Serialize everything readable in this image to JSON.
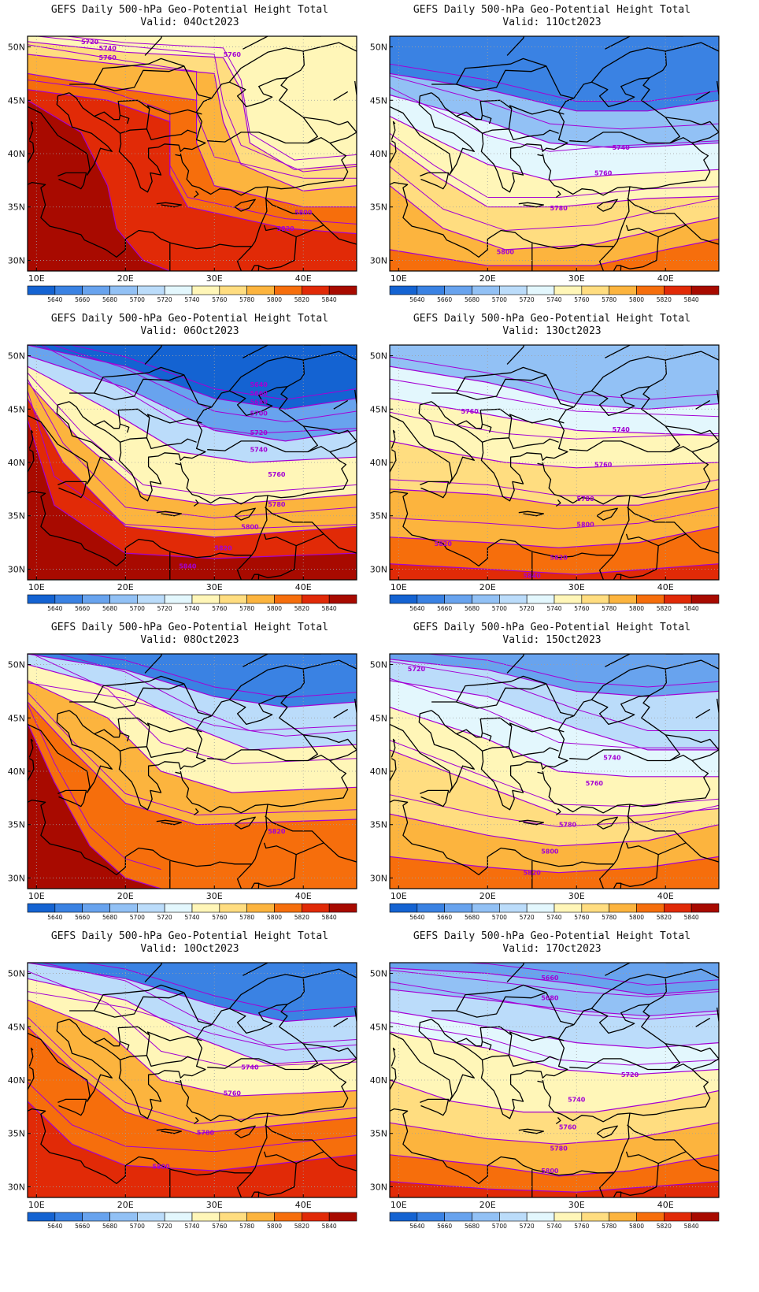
{
  "panels": [
    {
      "title": "GEFS Daily 500-hPa Geo-Potential Height Total",
      "valid": "Valid: 04Oct2023",
      "contour_labels": [
        {
          "text": "5720",
          "lon": 16,
          "lat": 50.5
        },
        {
          "text": "5740",
          "lon": 18,
          "lat": 49.9
        },
        {
          "text": "5760",
          "lon": 18,
          "lat": 49
        },
        {
          "text": "5760",
          "lon": 32,
          "lat": 49.3
        },
        {
          "text": "5800",
          "lon": 40,
          "lat": 34.5
        },
        {
          "text": "5820",
          "lon": 38,
          "lat": 33
        }
      ]
    },
    {
      "title": "GEFS Daily 500-hPa Geo-Potential Height Total",
      "valid": "Valid: 11Oct2023",
      "contour_labels": [
        {
          "text": "5740",
          "lon": 35,
          "lat": 40.6
        },
        {
          "text": "5760",
          "lon": 33,
          "lat": 38.2
        },
        {
          "text": "5780",
          "lon": 28,
          "lat": 34.9
        },
        {
          "text": "5800",
          "lon": 22,
          "lat": 30.8
        }
      ]
    },
    {
      "title": "GEFS Daily 500-hPa Geo-Potential Height Total",
      "valid": "Valid: 06Oct2023",
      "contour_labels": [
        {
          "text": "5640",
          "lon": 35,
          "lat": 47.3
        },
        {
          "text": "5660",
          "lon": 35,
          "lat": 46.5
        },
        {
          "text": "5680",
          "lon": 35,
          "lat": 45.7
        },
        {
          "text": "5700",
          "lon": 35,
          "lat": 44.6
        },
        {
          "text": "5720",
          "lon": 35,
          "lat": 42.8
        },
        {
          "text": "5740",
          "lon": 35,
          "lat": 41.2
        },
        {
          "text": "5760",
          "lon": 37,
          "lat": 38.9
        },
        {
          "text": "5780",
          "lon": 37,
          "lat": 36.1
        },
        {
          "text": "5800",
          "lon": 34,
          "lat": 34
        },
        {
          "text": "5820",
          "lon": 31,
          "lat": 32
        },
        {
          "text": "5840",
          "lon": 27,
          "lat": 30.3
        }
      ]
    },
    {
      "title": "GEFS Daily 500-hPa Geo-Potential Height Total",
      "valid": "Valid: 13Oct2023",
      "contour_labels": [
        {
          "text": "5760",
          "lon": 18,
          "lat": 44.8
        },
        {
          "text": "5740",
          "lon": 35,
          "lat": 43.1
        },
        {
          "text": "5760",
          "lon": 33,
          "lat": 39.8
        },
        {
          "text": "5780",
          "lon": 31,
          "lat": 36.6
        },
        {
          "text": "5800",
          "lon": 31,
          "lat": 34.2
        },
        {
          "text": "5820",
          "lon": 15,
          "lat": 32.4
        },
        {
          "text": "5820",
          "lon": 28,
          "lat": 31.1
        },
        {
          "text": "5840",
          "lon": 25,
          "lat": 29.4
        }
      ]
    },
    {
      "title": "GEFS Daily 500-hPa Geo-Potential Height Total",
      "valid": "Valid: 08Oct2023",
      "contour_labels": [
        {
          "text": "5820",
          "lon": 37,
          "lat": 34.4
        }
      ]
    },
    {
      "title": "GEFS Daily 500-hPa Geo-Potential Height Total",
      "valid": "Valid: 15Oct2023",
      "contour_labels": [
        {
          "text": "5720",
          "lon": 12,
          "lat": 49.6
        },
        {
          "text": "5740",
          "lon": 34,
          "lat": 41.3
        },
        {
          "text": "5760",
          "lon": 32,
          "lat": 38.9
        },
        {
          "text": "5780",
          "lon": 29,
          "lat": 35
        },
        {
          "text": "5800",
          "lon": 27,
          "lat": 32.5
        },
        {
          "text": "5820",
          "lon": 25,
          "lat": 30.5
        }
      ]
    },
    {
      "title": "GEFS Daily 500-hPa Geo-Potential Height Total",
      "valid": "Valid: 10Oct2023",
      "contour_labels": [
        {
          "text": "5740",
          "lon": 34,
          "lat": 41.2
        },
        {
          "text": "5760",
          "lon": 32,
          "lat": 38.8
        },
        {
          "text": "5780",
          "lon": 29,
          "lat": 35.1
        },
        {
          "text": "5800",
          "lon": 24,
          "lat": 31.9
        }
      ]
    },
    {
      "title": "GEFS Daily 500-hPa Geo-Potential Height Total",
      "valid": "Valid: 17Oct2023",
      "contour_labels": [
        {
          "text": "5660",
          "lon": 27,
          "lat": 49.6
        },
        {
          "text": "5680",
          "lon": 27,
          "lat": 47.7
        },
        {
          "text": "5720",
          "lon": 36,
          "lat": 40.5
        },
        {
          "text": "5740",
          "lon": 30,
          "lat": 38.2
        },
        {
          "text": "5760",
          "lon": 29,
          "lat": 35.6
        },
        {
          "text": "5780",
          "lon": 28,
          "lat": 33.6
        },
        {
          "text": "5800",
          "lon": 27,
          "lat": 31.5
        }
      ]
    }
  ],
  "axes": {
    "lon_ticks": [
      "10E",
      "20E",
      "30E",
      "40E"
    ],
    "lat_ticks": [
      "50N",
      "45N",
      "40N",
      "35N",
      "30N"
    ],
    "lon_values": [
      10,
      20,
      30,
      40
    ],
    "lat_values": [
      50,
      45,
      40,
      35,
      30
    ],
    "lon_range": [
      9,
      46
    ],
    "lat_range": [
      29,
      51
    ]
  },
  "colorbar": {
    "labels": [
      "5640",
      "5660",
      "5680",
      "5700",
      "5720",
      "5740",
      "5760",
      "5780",
      "5800",
      "5820",
      "5840"
    ],
    "colors": [
      "#1463d2",
      "#3a82e3",
      "#68a3ee",
      "#92c1f5",
      "#bbdcfa",
      "#e3f7fd",
      "#fff6b8",
      "#ffdd80",
      "#fcb43e",
      "#f66e0c",
      "#e12a07",
      "#a80a00"
    ]
  },
  "contour_color": "#a400d4",
  "grid_color": "#a0a0a0"
}
